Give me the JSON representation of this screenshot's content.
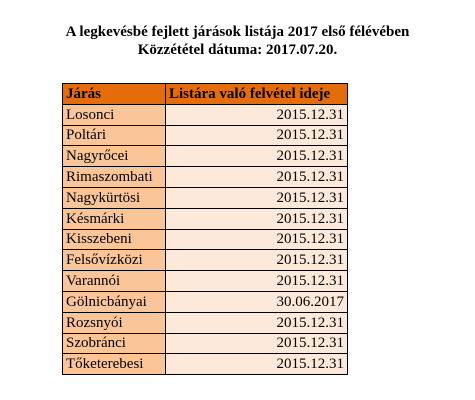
{
  "header": {
    "title": "A legkevésbé fejlett járások listája 2017 első félévében",
    "subtitle": "Közzététel dátuma: 2017.07.20."
  },
  "table": {
    "columns": [
      "Járás",
      "Listára való felvétel ideje"
    ],
    "rows": [
      [
        "Losonci",
        "2015.12.31"
      ],
      [
        "Poltári",
        "2015.12.31"
      ],
      [
        "Nagyrőcei",
        "2015.12.31"
      ],
      [
        "Rimaszombati",
        "2015.12.31"
      ],
      [
        "Nagykürtösi",
        "2015.12.31"
      ],
      [
        "Késmárki",
        "2015.12.31"
      ],
      [
        "Kisszebeni",
        "2015.12.31"
      ],
      [
        "Felsővízközi",
        "2015.12.31"
      ],
      [
        "Varannói",
        "2015.12.31"
      ],
      [
        "Gölnicbányai",
        "30.06.2017"
      ],
      [
        "Rozsnyói",
        "2015.12.31"
      ],
      [
        "Szobránci",
        "2015.12.31"
      ],
      [
        "Tőketerebesi",
        "2015.12.31"
      ]
    ]
  }
}
